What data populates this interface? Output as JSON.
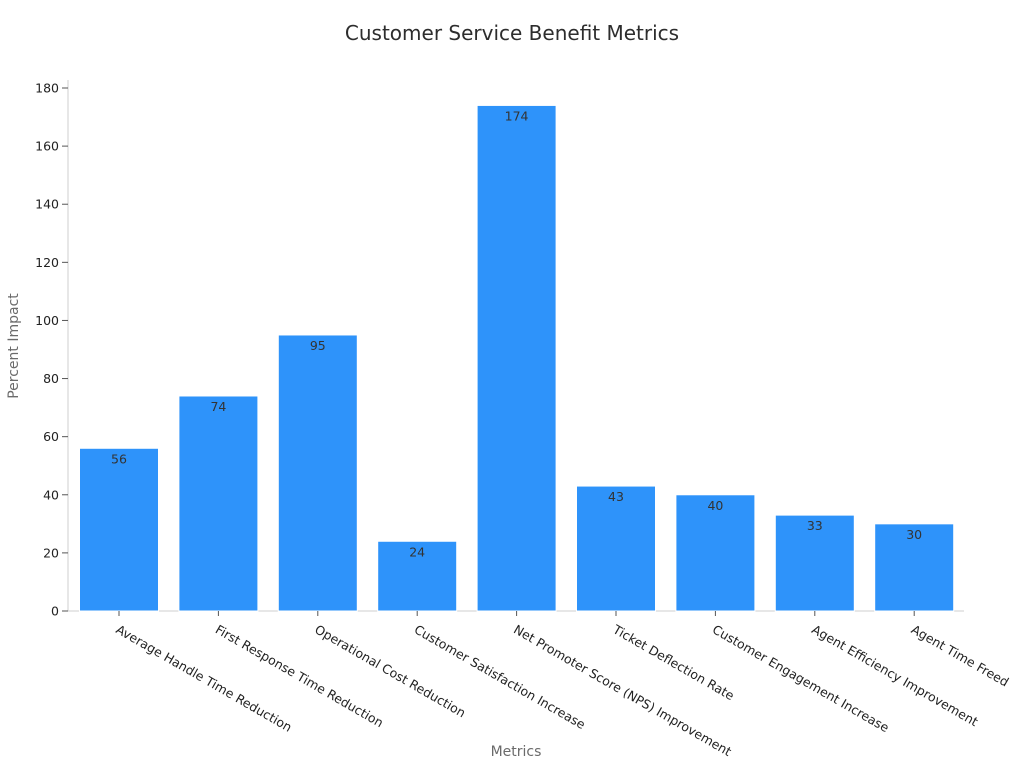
{
  "chart_data": {
    "type": "bar",
    "title": "Customer Service Benefit Metrics",
    "xlabel": "Metrics",
    "ylabel": "Percent Impact",
    "categories": [
      "Average Handle Time Reduction",
      "First Response Time Reduction",
      "Operational Cost Reduction",
      "Customer Satisfaction Increase",
      "Net Promoter Score (NPS) Improvement",
      "Ticket Deflection Rate",
      "Customer Engagement Increase",
      "Agent Efficiency Improvement",
      "Agent Time Freed"
    ],
    "values": [
      56,
      74,
      95,
      24,
      174,
      43,
      40,
      33,
      30
    ],
    "ylim": [
      0,
      180
    ],
    "yticks": [
      0,
      20,
      40,
      60,
      80,
      100,
      120,
      140,
      160,
      180
    ],
    "bar_color": "#2e93fa",
    "grid": false,
    "legend": "none"
  }
}
